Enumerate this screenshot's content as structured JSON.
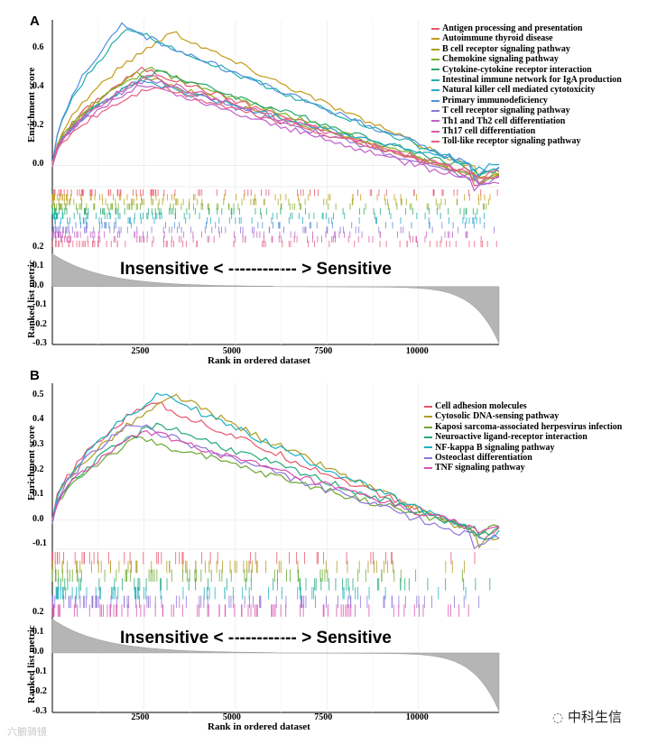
{
  "chart_data": [
    {
      "panel": "A",
      "type": "line",
      "title": "",
      "xlabel": "Rank in ordered dataset",
      "ylabel_top": "Enrichment score",
      "ylabel_bottom": "Ranked list metric",
      "xlim": [
        0,
        12200
      ],
      "ylim_top": [
        -0.1,
        0.75
      ],
      "ylim_bottom": [
        -0.3,
        0.2
      ],
      "x_ticks": [
        2500,
        5000,
        7500,
        10000
      ],
      "x_tick_labels": [
        "2500",
        "5000",
        "7500",
        "10000"
      ],
      "y_ticks_top": [
        0.0,
        0.2,
        0.4,
        0.6
      ],
      "y_tick_labels_top": [
        "0.0",
        "0.2",
        "0.4",
        "0.6"
      ],
      "y_ticks_bottom": [
        0.2,
        0.1,
        0.0,
        -0.1,
        -0.2,
        -0.3
      ],
      "y_tick_labels_bottom": [
        "0.2",
        "0.1",
        "0.0",
        "-0.1",
        "-0.2",
        "-0.3"
      ],
      "annotation": "Insensitive < ------------ > Sensitive",
      "legend_position": "top-right",
      "series": [
        {
          "name": "Antigen processing and presentation",
          "color": "#e8566c",
          "peak_x": 2500,
          "peak": 0.5,
          "end": -0.06
        },
        {
          "name": "Autoimmune thyroid disease",
          "color": "#c49a18",
          "peak_x": 3300,
          "peak": 0.69,
          "end": -0.03
        },
        {
          "name": "B cell receptor signaling pathway",
          "color": "#a8a020",
          "peak_x": 2300,
          "peak": 0.47,
          "end": -0.04
        },
        {
          "name": "Chemokine signaling pathway",
          "color": "#7caf2a",
          "peak_x": 2700,
          "peak": 0.5,
          "end": -0.05
        },
        {
          "name": "Cytokine-cytokine receptor interaction",
          "color": "#2aa86a",
          "peak_x": 2900,
          "peak": 0.49,
          "end": -0.02
        },
        {
          "name": "Intestinal immune network for IgA production",
          "color": "#1cb0a8",
          "peak_x": 2100,
          "peak": 0.71,
          "end": -0.02
        },
        {
          "name": "Natural killer cell mediated cytotoxicity",
          "color": "#28a8cc",
          "peak_x": 2400,
          "peak": 0.44,
          "end": 0.01
        },
        {
          "name": "Primary immunodeficiency",
          "color": "#4f8ee0",
          "peak_x": 1900,
          "peak": 0.72,
          "end": -0.01
        },
        {
          "name": "T cell receptor signaling pathway",
          "color": "#8f74d8",
          "peak_x": 2600,
          "peak": 0.45,
          "end": -0.07
        },
        {
          "name": "Th1 and Th2 cell differentiation",
          "color": "#c060c8",
          "peak_x": 2500,
          "peak": 0.42,
          "end": -0.08
        },
        {
          "name": "Th17 cell differentiation",
          "color": "#d85aa8",
          "peak_x": 2600,
          "peak": 0.46,
          "end": -0.05
        },
        {
          "name": "Toll-like receptor signaling pathway",
          "color": "#e8607f",
          "peak_x": 2800,
          "peak": 0.41,
          "end": -0.03
        }
      ]
    },
    {
      "panel": "B",
      "type": "line",
      "title": "",
      "xlabel": "Rank in ordered dataset",
      "ylabel_top": "Enrichment score",
      "ylabel_bottom": "Ranked list metric",
      "xlim": [
        0,
        12200
      ],
      "ylim_top": [
        -0.12,
        0.55
      ],
      "ylim_bottom": [
        -0.3,
        0.2
      ],
      "x_ticks": [
        2500,
        5000,
        7500,
        10000
      ],
      "x_tick_labels": [
        "2500",
        "5000",
        "7500",
        "10000"
      ],
      "y_ticks_top": [
        -0.1,
        0.0,
        0.1,
        0.2,
        0.3,
        0.4,
        0.5
      ],
      "y_tick_labels_top": [
        "-0.1",
        "0.0",
        "0.1",
        "0.2",
        "0.3",
        "0.4",
        "0.5"
      ],
      "y_ticks_bottom": [
        0.2,
        0.1,
        0.0,
        -0.1,
        -0.2,
        -0.3
      ],
      "y_tick_labels_bottom": [
        "0.2",
        "0.1",
        "0.0",
        "-0.1",
        "-0.2",
        "-0.3"
      ],
      "annotation": "Insensitive < ------------ > Sensitive",
      "legend_position": "top-right",
      "series": [
        {
          "name": "Cell adhesion molecules",
          "color": "#e8566c",
          "peak_x": 2700,
          "peak": 0.48,
          "end": -0.04
        },
        {
          "name": "Cytosolic DNA-sensing pathway",
          "color": "#b09a20",
          "peak_x": 3400,
          "peak": 0.5,
          "end": -0.06
        },
        {
          "name": "Kaposi sarcoma-associated herpesvirus infection",
          "color": "#6aa830",
          "peak_x": 2400,
          "peak": 0.33,
          "end": -0.02
        },
        {
          "name": "Neuroactive ligand-receptor interaction",
          "color": "#22a878",
          "peak_x": 2900,
          "peak": 0.39,
          "end": -0.03
        },
        {
          "name": "NF-kappa B signaling pathway",
          "color": "#1cb0c0",
          "peak_x": 3000,
          "peak": 0.51,
          "end": -0.05
        },
        {
          "name": "Osteoclast differentiation",
          "color": "#8f74d8",
          "peak_x": 2200,
          "peak": 0.39,
          "end": -0.06
        },
        {
          "name": "TNF signaling pathway",
          "color": "#d84fb0",
          "peak_x": 2600,
          "peak": 0.36,
          "end": -0.02
        }
      ]
    }
  ],
  "watermark": {
    "left": "六腑骑镜"
  },
  "brand": {
    "label": "中科生信"
  }
}
